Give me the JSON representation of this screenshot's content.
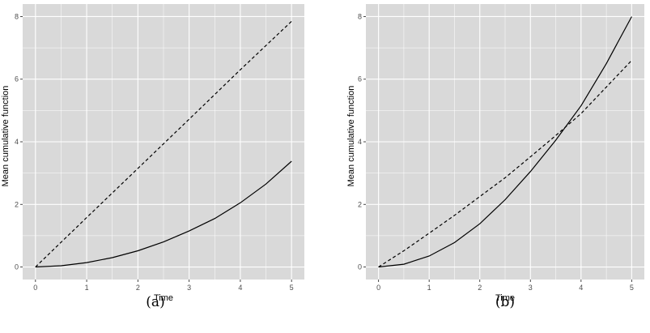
{
  "chart_data": [
    {
      "type": "line",
      "caption": "(a)",
      "xlabel": "Time",
      "ylabel": "Mean cumulative function",
      "xlim": [
        0,
        5
      ],
      "ylim": [
        0,
        8
      ],
      "x_ticks": [
        0,
        1,
        2,
        3,
        4,
        5
      ],
      "y_ticks": [
        0,
        2,
        4,
        6,
        8
      ],
      "grid": true,
      "series": [
        {
          "style": "solid",
          "x": [
            0,
            0.5,
            1,
            1.5,
            2,
            2.5,
            3,
            3.5,
            4,
            4.5,
            5
          ],
          "y": [
            0,
            0.04,
            0.14,
            0.3,
            0.52,
            0.8,
            1.15,
            1.55,
            2.05,
            2.65,
            3.38
          ]
        },
        {
          "style": "dashed",
          "x": [
            0,
            1,
            2,
            3,
            4,
            5
          ],
          "y": [
            0,
            1.58,
            3.15,
            4.72,
            6.3,
            7.85
          ]
        }
      ]
    },
    {
      "type": "line",
      "caption": "(b)",
      "xlabel": "Time",
      "ylabel": "Mean cumulative function",
      "xlim": [
        0,
        5
      ],
      "ylim": [
        0,
        8
      ],
      "x_ticks": [
        0,
        1,
        2,
        3,
        4,
        5
      ],
      "y_ticks": [
        0,
        2,
        4,
        6,
        8
      ],
      "grid": true,
      "series": [
        {
          "style": "solid",
          "x": [
            0,
            0.5,
            1,
            1.5,
            2,
            2.5,
            3,
            3.5,
            4,
            4.5,
            5
          ],
          "y": [
            0,
            0.09,
            0.35,
            0.78,
            1.38,
            2.15,
            3.05,
            4.05,
            5.15,
            6.5,
            8.0
          ]
        },
        {
          "style": "dashed",
          "x": [
            0,
            0.5,
            1,
            1.5,
            2,
            2.5,
            3,
            3.5,
            4,
            4.5,
            5
          ],
          "y": [
            0,
            0.52,
            1.08,
            1.65,
            2.25,
            2.85,
            3.52,
            4.2,
            4.9,
            5.75,
            6.6
          ]
        }
      ]
    }
  ]
}
